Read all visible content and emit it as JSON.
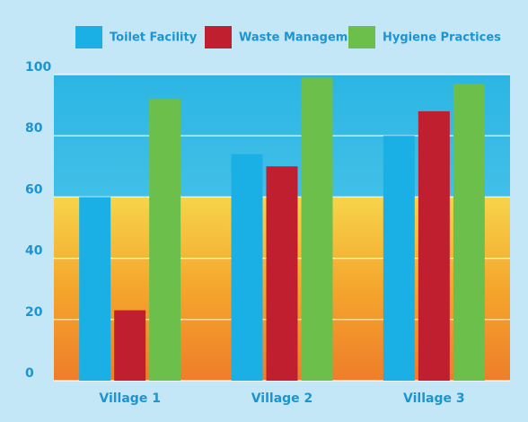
{
  "chart_data": {
    "type": "bar",
    "categories": [
      "Village 1",
      "Village 2",
      "Village 3"
    ],
    "series": [
      {
        "name": "Toilet Facility",
        "color": "#1ab0e6",
        "values": [
          60,
          74,
          80
        ]
      },
      {
        "name": "Waste Management",
        "color": "#c01f2f",
        "values": [
          23,
          70,
          88
        ]
      },
      {
        "name": "Hygiene Practices",
        "color": "#6cbf4b",
        "values": [
          92,
          99,
          97
        ]
      }
    ],
    "ylim": [
      0,
      100
    ],
    "yticks": [
      0,
      20,
      40,
      60,
      80,
      100
    ],
    "grid": true
  }
}
